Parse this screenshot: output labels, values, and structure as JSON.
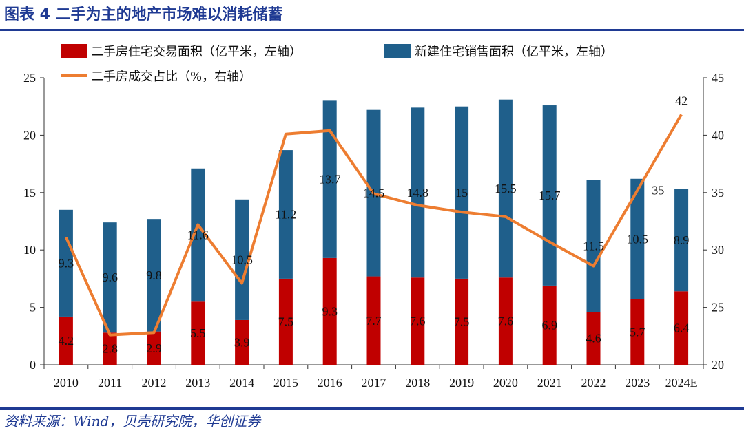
{
  "header": {
    "title": "图表 4    二手为主的地产市场难以消耗储蓄"
  },
  "footer": {
    "source": "资料来源：Wind，贝壳研究院，华创证券"
  },
  "colors": {
    "secondhand": "#c00000",
    "newbuild": "#1f5f8b",
    "ratio": "#ed7d31",
    "title": "#1f3a93"
  },
  "chart_data": {
    "type": "bar",
    "stacked": true,
    "categories": [
      "2010",
      "2011",
      "2012",
      "2013",
      "2014",
      "2015",
      "2016",
      "2017",
      "2018",
      "2019",
      "2020",
      "2021",
      "2022",
      "2023",
      "2024E"
    ],
    "series": [
      {
        "name": "二手房住宅交易面积（亿平米，左轴）",
        "type": "bar",
        "axis": "left",
        "values": [
          4.2,
          2.8,
          2.9,
          5.5,
          3.9,
          7.5,
          9.3,
          7.7,
          7.6,
          7.5,
          7.6,
          6.9,
          4.6,
          5.7,
          6.4
        ]
      },
      {
        "name": "新建住宅销售面积（亿平米，左轴）",
        "type": "bar",
        "axis": "left",
        "values": [
          9.3,
          9.6,
          9.8,
          11.6,
          10.5,
          11.2,
          13.7,
          14.5,
          14.8,
          15,
          15.5,
          15.7,
          11.5,
          10.5,
          8.9
        ]
      },
      {
        "name": "二手房成交占比（%，右轴）",
        "type": "line",
        "axis": "right",
        "values": [
          31.1,
          22.6,
          22.8,
          32.2,
          27.1,
          40.1,
          40.4,
          34.9,
          33.9,
          33.3,
          32.9,
          30.7,
          28.6,
          35.2,
          41.8
        ],
        "labels": [
          "",
          "",
          "",
          "",
          "",
          "",
          "",
          "",
          "",
          "",
          "",
          "",
          "",
          "35",
          "42"
        ]
      }
    ],
    "yleft": {
      "ylim": [
        0,
        25
      ],
      "ticks": [
        "0",
        "5",
        "10",
        "15",
        "20",
        "25"
      ]
    },
    "yright": {
      "ylim": [
        20,
        45
      ],
      "ticks": [
        "20",
        "25",
        "30",
        "35",
        "40",
        "45"
      ]
    },
    "legend": "top"
  }
}
